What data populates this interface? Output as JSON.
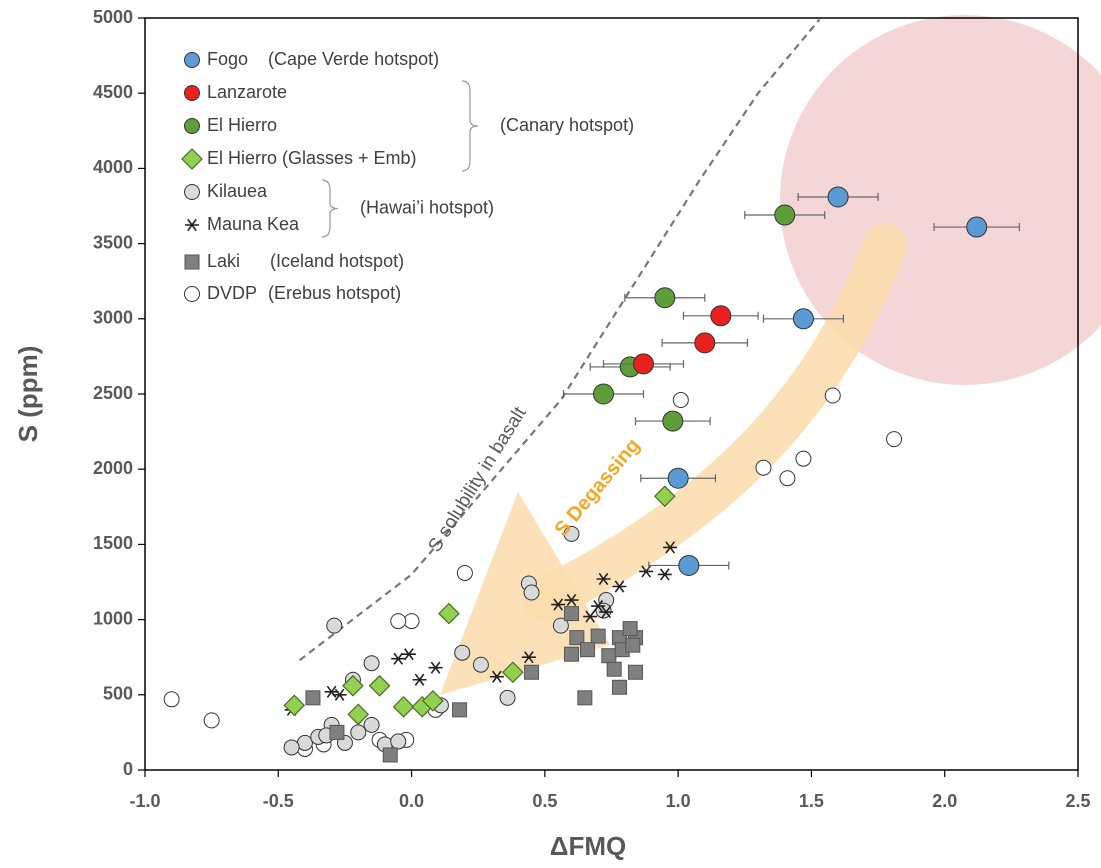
{
  "chart_data": {
    "type": "scatter",
    "xlabel": "ΔFMQ",
    "ylabel": "S (ppm)",
    "xlim": [
      -1,
      2.5
    ],
    "ylim": [
      0,
      5000
    ],
    "xticks": [
      {
        "value": -1,
        "label": "-1.0"
      },
      -0.5,
      {
        "value": 0,
        "label": "0.0"
      },
      0.5,
      {
        "value": 1,
        "label": "1.0"
      },
      1.5,
      {
        "value": 2,
        "label": "2.0"
      },
      2.5
    ],
    "yticks": [
      0,
      500,
      1000,
      1500,
      2000,
      2500,
      3000,
      3500,
      4000,
      4500,
      5000
    ],
    "series": [
      {
        "name": "Fogo",
        "marker": "circle",
        "color": "#5b9bd5",
        "x": [
          1.6,
          2.12,
          1.47,
          1.0,
          1.04
        ],
        "values": [
          3810,
          3610,
          3000,
          1940,
          1360
        ],
        "xerr": [
          0.15,
          0.16,
          0.15,
          0.14,
          0.15
        ]
      },
      {
        "name": "Lanzarote",
        "marker": "circle",
        "color": "#e8201e",
        "x": [
          1.16,
          1.1,
          0.87
        ],
        "values": [
          3020,
          2840,
          2700
        ],
        "xerr": [
          0.14,
          0.16,
          0.15
        ]
      },
      {
        "name": "El Hierro",
        "marker": "circle",
        "color": "#5e9e3a",
        "x": [
          1.4,
          0.95,
          0.82,
          0.72,
          0.98
        ],
        "values": [
          3690,
          3140,
          2680,
          2500,
          2320
        ],
        "xerr": [
          0.15,
          0.15,
          0.15,
          0.15,
          0.14
        ]
      },
      {
        "name": "El Hierro (Glasses + Emb)",
        "marker": "diamond",
        "color": "#92d050",
        "x": [
          0.95,
          0.14,
          0.38,
          -0.44,
          -0.2,
          -0.22,
          -0.12,
          -0.03,
          0.04,
          0.08
        ],
        "values": [
          1820,
          1040,
          650,
          430,
          370,
          560,
          560,
          420,
          420,
          460
        ]
      },
      {
        "name": "Kilauea",
        "marker": "circle",
        "color": "#d9d9d9",
        "x": [
          0.6,
          0.44,
          0.45,
          0.19,
          0.26,
          0.36,
          -0.29,
          -0.15,
          -0.22,
          0.73,
          0.56,
          -0.4,
          -0.35,
          -0.3,
          -0.25,
          -0.2,
          -0.15,
          -0.1,
          -0.45,
          -0.32,
          -0.05,
          0.11,
          0.72
        ],
        "values": [
          1570,
          1240,
          1180,
          780,
          700,
          480,
          960,
          710,
          600,
          1130,
          960,
          180,
          220,
          300,
          180,
          250,
          300,
          170,
          150,
          230,
          190,
          430,
          1060
        ]
      },
      {
        "name": "Mauna Kea",
        "marker": "asterisk",
        "color": "#222222",
        "x": [
          0.97,
          0.88,
          0.95,
          0.78,
          0.72,
          0.6,
          0.55,
          0.7,
          0.73,
          0.67,
          0.44,
          0.32,
          -0.01,
          0.03,
          0.09,
          -0.3,
          -0.27,
          -0.45,
          -0.05
        ],
        "values": [
          1480,
          1320,
          1300,
          1220,
          1270,
          1130,
          1100,
          1090,
          1050,
          1020,
          750,
          620,
          770,
          600,
          680,
          520,
          500,
          400,
          740
        ]
      },
      {
        "name": "Laki",
        "marker": "square",
        "color": "#7f7f7f",
        "x": [
          0.6,
          0.62,
          0.7,
          0.78,
          0.84,
          0.82,
          0.66,
          0.6,
          0.74,
          0.79,
          0.83,
          0.76,
          0.84,
          0.78,
          0.65,
          0.45,
          0.18,
          -0.37,
          -0.28,
          -0.08
        ],
        "values": [
          1040,
          880,
          890,
          880,
          880,
          940,
          800,
          770,
          760,
          800,
          830,
          670,
          650,
          550,
          480,
          650,
          400,
          480,
          250,
          100
        ]
      },
      {
        "name": "DVDP",
        "marker": "circle",
        "color": "#ffffff",
        "x": [
          -0.9,
          -0.75,
          1.01,
          1.58,
          1.81,
          1.32,
          1.47,
          1.41,
          0.0,
          -0.05,
          0.2,
          0.09,
          -0.02,
          -0.12,
          -0.4,
          -0.33
        ],
        "values": [
          470,
          330,
          2460,
          2490,
          2200,
          2010,
          2070,
          1940,
          990,
          990,
          1310,
          400,
          200,
          200,
          140,
          170
        ]
      }
    ],
    "legend_groups": [
      "(Cape Verde hotspot)",
      "(Canary hotspot)",
      "(Hawai’i hotspot)",
      "(Iceland hotspot)",
      "(Erebus hotspot)"
    ],
    "curves": [
      {
        "name": "S solubility in basalt",
        "x": [
          -0.42,
          0,
          0.56,
          1.08,
          1.3,
          1.53
        ],
        "values": [
          730,
          1300,
          2460,
          3920,
          4500,
          4990
        ]
      }
    ],
    "annotations": [
      "S Degassing"
    ]
  }
}
